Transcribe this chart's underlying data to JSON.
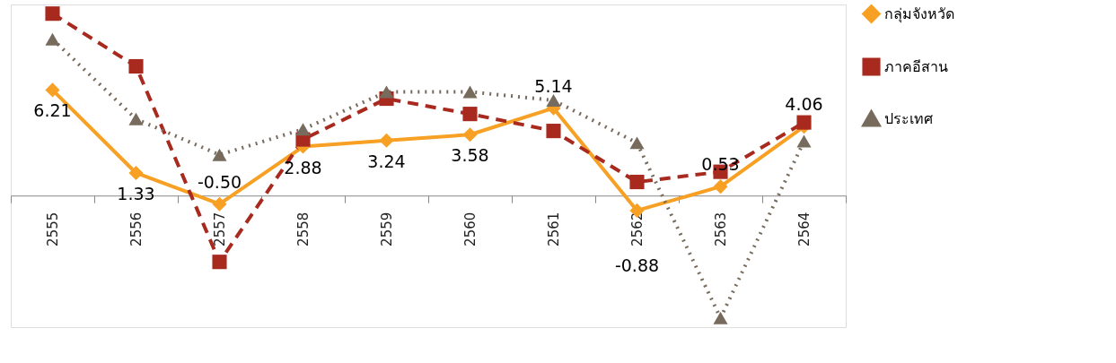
{
  "chart_data": {
    "type": "line",
    "categories": [
      "2555",
      "2556",
      "2557",
      "2558",
      "2559",
      "2560",
      "2561",
      "2562",
      "2563",
      "2564"
    ],
    "series": [
      {
        "name": "กลุ่มจังหวัด",
        "color": "#f7a024",
        "marker": "diamond",
        "line_style": "solid",
        "values": [
          6.21,
          1.33,
          -0.5,
          2.88,
          3.24,
          3.58,
          5.14,
          -0.88,
          0.53,
          4.06
        ],
        "value_labels": [
          "6.21",
          "1.33",
          "-0.50",
          "2.88",
          "3.24",
          "3.58",
          "5.14",
          "-0.88",
          "0.53",
          "4.06"
        ]
      },
      {
        "name": "ภาคอีสาน",
        "color": "#a82a1f",
        "marker": "square",
        "line_style": "dashed",
        "values": [
          10.7,
          7.6,
          -3.9,
          3.3,
          5.7,
          4.8,
          3.8,
          0.8,
          1.4,
          4.3
        ]
      },
      {
        "name": "ประเทศ",
        "color": "#776b5d",
        "marker": "triangle",
        "line_style": "dotted",
        "values": [
          9.2,
          4.5,
          2.4,
          3.9,
          6.1,
          6.1,
          5.6,
          3.1,
          -7.2,
          3.2
        ]
      }
    ],
    "legend": "right",
    "grid": false
  }
}
